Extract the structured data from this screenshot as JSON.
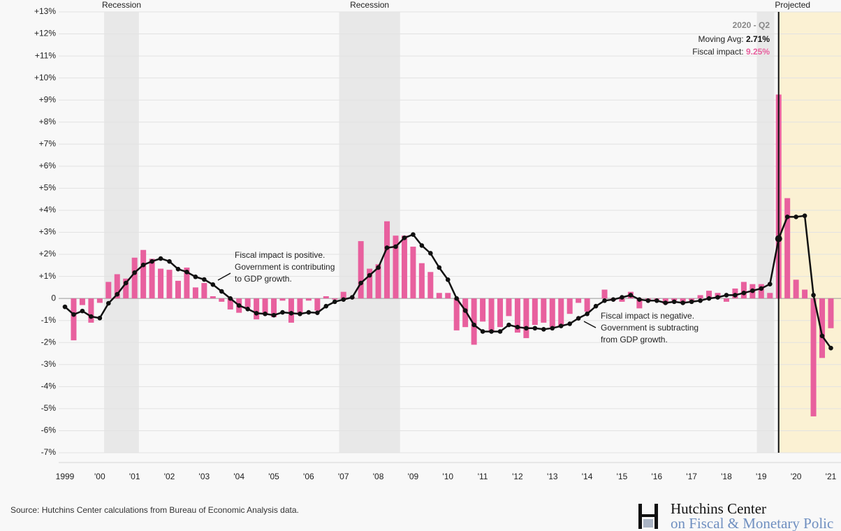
{
  "chart_data": {
    "type": "combo",
    "categories": [
      "1999",
      null,
      null,
      null,
      "'00",
      null,
      null,
      null,
      "'01",
      null,
      null,
      null,
      "'02",
      null,
      null,
      null,
      "'03",
      null,
      null,
      null,
      "'04",
      null,
      null,
      null,
      "'05",
      null,
      null,
      null,
      "'06",
      null,
      null,
      null,
      "'07",
      null,
      null,
      null,
      "'08",
      null,
      null,
      null,
      "'09",
      null,
      null,
      null,
      "'10",
      null,
      null,
      null,
      "'11",
      null,
      null,
      null,
      "'12",
      null,
      null,
      null,
      "'13",
      null,
      null,
      null,
      "'14",
      null,
      null,
      null,
      "'15",
      null,
      null,
      null,
      "'16",
      null,
      null,
      null,
      "'17",
      null,
      null,
      null,
      "'18",
      null,
      null,
      null,
      "'19",
      null,
      null,
      null,
      "'20",
      null,
      null,
      null,
      "'21"
    ],
    "series": [
      {
        "type": "bar",
        "color": "#e8609e",
        "values": [
          null,
          -1.9,
          -0.3,
          -1.1,
          -0.2,
          0.75,
          1.1,
          0.9,
          1.85,
          2.2,
          1.8,
          1.35,
          1.3,
          0.8,
          1.4,
          0.5,
          0.7,
          0.1,
          -0.15,
          -0.5,
          -0.65,
          -0.4,
          -0.95,
          -0.7,
          -0.85,
          -0.1,
          -1.1,
          -0.7,
          -0.1,
          -0.55,
          0.1,
          -0.05,
          0.3,
          0.05,
          2.6,
          1.35,
          1.55,
          3.5,
          2.85,
          2.85,
          2.35,
          1.6,
          1.2,
          0.25,
          0.25,
          -1.45,
          -1.3,
          -2.1,
          -1.05,
          -1.5,
          -1.3,
          -0.8,
          -1.55,
          -1.8,
          -1.2,
          -1.1,
          -1.3,
          -1.25,
          -0.7,
          -0.2,
          -0.6,
          0,
          0.4,
          -0.1,
          -0.15,
          0.3,
          -0.45,
          -0.1,
          -0.05,
          -0.25,
          -0.1,
          -0.15,
          -0.1,
          0.15,
          0.35,
          0.25,
          -0.15,
          0.45,
          0.75,
          0.65,
          0.65,
          0.25,
          9.25,
          4.55,
          0.85,
          0.4,
          -5.35,
          -2.7,
          -1.35
        ]
      },
      {
        "type": "line",
        "color": "#111111",
        "values": [
          -0.38,
          -0.73,
          -0.57,
          -0.82,
          -0.89,
          -0.22,
          0.19,
          0.7,
          1.17,
          1.52,
          1.68,
          1.81,
          1.68,
          1.33,
          1.2,
          0.98,
          0.86,
          0.63,
          0.32,
          0,
          -0.32,
          -0.48,
          -0.67,
          -0.7,
          -0.76,
          -0.63,
          -0.67,
          -0.7,
          -0.63,
          -0.65,
          -0.35,
          -0.15,
          -0.05,
          0.05,
          0.7,
          1.05,
          1.4,
          2.3,
          2.35,
          2.75,
          2.9,
          2.4,
          2.05,
          1.4,
          0.85,
          0,
          -0.55,
          -1.2,
          -1.5,
          -1.5,
          -1.5,
          -1.2,
          -1.3,
          -1.35,
          -1.35,
          -1.4,
          -1.35,
          -1.25,
          -1.15,
          -0.9,
          -0.7,
          -0.35,
          -0.1,
          -0.05,
          0.05,
          0.15,
          -0.05,
          -0.1,
          -0.1,
          -0.2,
          -0.15,
          -0.2,
          -0.15,
          -0.1,
          0,
          0.05,
          0.15,
          0.15,
          0.25,
          0.35,
          0.45,
          0.65,
          2.71,
          3.7,
          3.7,
          3.75,
          0.15,
          -1.7,
          -2.25
        ]
      }
    ],
    "ylim": [
      -7,
      13
    ],
    "yticks": [
      {
        "value": 13,
        "label": "+13%"
      },
      {
        "value": 12,
        "label": "+12%"
      },
      {
        "value": 11,
        "label": "+11%"
      },
      {
        "value": 10,
        "label": "+10%"
      },
      {
        "value": 9,
        "label": "+9%"
      },
      {
        "value": 8,
        "label": "+8%"
      },
      {
        "value": 7,
        "label": "+7%"
      },
      {
        "value": 6,
        "label": "+6%"
      },
      {
        "value": 5,
        "label": "+5%"
      },
      {
        "value": 4,
        "label": "+4%"
      },
      {
        "value": 3,
        "label": "+3%"
      },
      {
        "value": 2,
        "label": "+2%"
      },
      {
        "value": 1,
        "label": "+1%"
      },
      0,
      {
        "value": -1,
        "label": "-1%"
      },
      {
        "value": -2,
        "label": "-2%"
      },
      {
        "value": -3,
        "label": "-3%"
      },
      {
        "value": -4,
        "label": "-4%"
      },
      {
        "value": -5,
        "label": "-5%"
      },
      {
        "value": -6,
        "label": "-6%"
      },
      {
        "value": -7,
        "label": "-7%"
      }
    ],
    "grid": true,
    "shades": [
      {
        "label": "Recession",
        "from": 5,
        "to": 8
      },
      {
        "label": "Recession",
        "from": 32,
        "to": 38
      },
      {
        "from": 80,
        "to": 81
      }
    ],
    "projected": {
      "label": "Projected",
      "from": 82,
      "color": "#fbf1d3"
    },
    "tooltip": {
      "title": "2020 - Q2",
      "rows": [
        {
          "label": "Moving Avg:",
          "value": "2.71%"
        },
        {
          "label": "Fiscal impact:",
          "value": "9.25%"
        }
      ]
    },
    "annotations": [
      {
        "lines": [
          "Fiscal impact is positive.",
          "Government is contributing",
          "to GDP growth."
        ]
      },
      {
        "lines": [
          "Fiscal impact is negative.",
          "Government is subtracting",
          "from GDP growth."
        ]
      }
    ]
  },
  "source": "Source: Hutchins Center calculations from Bureau of Economic Analysis data.",
  "logo": {
    "line1": "Hutchins Center",
    "line2": "on Fiscal & Monetary Polic"
  }
}
